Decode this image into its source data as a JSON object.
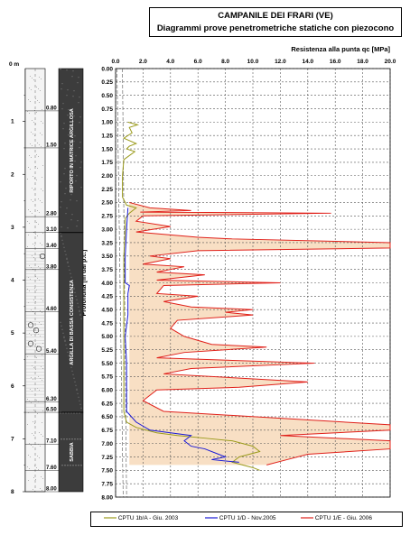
{
  "title_line1": "CAMPANILE DEI FRARI (VE)",
  "title_line2": "Diagrammi prove penetrometriche statiche con piezocono",
  "colors": {
    "cptu_1bA": "#9b9b1c",
    "cptu_1D": "#1a1ad6",
    "cptu_1E": "#e0201a",
    "fill": "#f8dfc4",
    "grid": "#555555"
  },
  "strat_column": {
    "depth_unit": "0 m",
    "depth_ticks": [
      "1",
      "2",
      "3",
      "4",
      "5",
      "6",
      "7",
      "8"
    ],
    "depth_values": [
      1,
      2,
      3,
      4,
      5,
      6,
      7,
      8
    ],
    "layer_boundary_labels": [
      "0.80",
      "1.50",
      "2.80",
      "3.10",
      "3.40",
      "3.80",
      "4.60",
      "5.40",
      "6.30",
      "6.50",
      "7.10",
      "7.60",
      "8.00"
    ],
    "layer_boundary_values": [
      0.8,
      1.5,
      2.8,
      3.1,
      3.4,
      3.8,
      4.6,
      5.4,
      6.3,
      6.5,
      7.1,
      7.6,
      8.0
    ],
    "units": [
      {
        "name": "RIPORTO IN MATRICE ARGILLOSA",
        "top": 0,
        "bottom": 3.1
      },
      {
        "name": "ARGILLA DI BASSA CONSISTENZA",
        "top": 3.1,
        "bottom": 6.5
      },
      {
        "name": "SABBIA",
        "top": 6.5,
        "bottom": 8.0
      }
    ]
  },
  "chart_data": {
    "type": "line",
    "title": "Resistenza alla punta qc [MPa]",
    "ylabel": "Profondità [m dal p.c.]",
    "xlim": [
      0,
      20
    ],
    "ylim": [
      0,
      8
    ],
    "x_ticks": [
      "0.0",
      "2.0",
      "4.0",
      "6.0",
      "8.0",
      "10.0",
      "12.0",
      "14.0",
      "16.0",
      "18.0",
      "20.0"
    ],
    "y_ticks": [
      "0.00",
      "0.25",
      "0.50",
      "0.75",
      "1.00",
      "1.25",
      "1.50",
      "1.75",
      "2.00",
      "2.25",
      "2.50",
      "2.75",
      "3.00",
      "3.25",
      "3.50",
      "3.75",
      "4.00",
      "4.25",
      "4.50",
      "4.75",
      "5.00",
      "5.25",
      "5.50",
      "5.75",
      "6.00",
      "6.25",
      "6.50",
      "6.75",
      "7.00",
      "7.25",
      "7.50",
      "7.75",
      "8.00"
    ],
    "grid": true,
    "series": [
      {
        "name": "CPTU 1b/A - Giu. 2003",
        "color": "#9b9b1c",
        "points": [
          [
            0.9,
            1.0
          ],
          [
            1.6,
            1.05
          ],
          [
            1.0,
            1.1
          ],
          [
            1.2,
            1.2
          ],
          [
            0.6,
            1.3
          ],
          [
            1.5,
            1.4
          ],
          [
            1.0,
            1.45
          ],
          [
            0.8,
            1.5
          ],
          [
            1.4,
            1.55
          ],
          [
            0.6,
            1.7
          ],
          [
            0.5,
            2.0
          ],
          [
            0.5,
            2.4
          ],
          [
            0.8,
            2.55
          ],
          [
            1.5,
            2.6
          ],
          [
            1.0,
            2.7
          ],
          [
            0.7,
            2.8
          ],
          [
            0.7,
            3.0
          ],
          [
            0.6,
            3.5
          ],
          [
            0.6,
            4.0
          ],
          [
            0.6,
            4.5
          ],
          [
            0.6,
            5.0
          ],
          [
            0.6,
            5.5
          ],
          [
            0.6,
            6.0
          ],
          [
            0.6,
            6.4
          ],
          [
            0.8,
            6.6
          ],
          [
            1.5,
            6.7
          ],
          [
            3.0,
            6.8
          ],
          [
            4.5,
            6.85
          ],
          [
            6.5,
            6.9
          ],
          [
            8.5,
            6.95
          ],
          [
            10.0,
            7.05
          ],
          [
            10.5,
            7.15
          ],
          [
            9.0,
            7.25
          ],
          [
            8.5,
            7.35
          ],
          [
            10.0,
            7.45
          ],
          [
            10.5,
            7.5
          ]
        ]
      },
      {
        "name": "CPTU 1/D - Nov.2005",
        "color": "#1a1ad6",
        "points": [
          [
            0.9,
            2.6
          ],
          [
            0.8,
            3.0
          ],
          [
            0.7,
            3.5
          ],
          [
            0.7,
            4.0
          ],
          [
            1.0,
            4.05
          ],
          [
            0.9,
            4.2
          ],
          [
            0.9,
            4.6
          ],
          [
            0.7,
            5.0
          ],
          [
            0.8,
            5.5
          ],
          [
            0.8,
            6.0
          ],
          [
            0.8,
            6.4
          ],
          [
            1.5,
            6.6
          ],
          [
            2.5,
            6.75
          ],
          [
            4.0,
            6.8
          ],
          [
            5.5,
            6.85
          ],
          [
            5.0,
            6.95
          ],
          [
            5.5,
            7.05
          ],
          [
            6.5,
            7.1
          ],
          [
            7.5,
            7.2
          ],
          [
            8.0,
            7.25
          ],
          [
            7.0,
            7.3
          ],
          [
            9.0,
            7.35
          ]
        ]
      },
      {
        "name": "CPTU 1/E - Giu. 2006",
        "color": "#e0201a",
        "points": [
          [
            1.0,
            2.5
          ],
          [
            2.5,
            2.6
          ],
          [
            5.5,
            2.65
          ],
          [
            1.8,
            2.68
          ],
          [
            15.7,
            2.7
          ],
          [
            2.0,
            2.75
          ],
          [
            1.5,
            2.85
          ],
          [
            4.0,
            2.95
          ],
          [
            1.5,
            3.05
          ],
          [
            6.0,
            3.15
          ],
          [
            8.5,
            3.18
          ],
          [
            20.0,
            3.25
          ],
          [
            20.0,
            3.35
          ],
          [
            6.0,
            3.4
          ],
          [
            2.5,
            3.5
          ],
          [
            4.0,
            3.55
          ],
          [
            2.0,
            3.65
          ],
          [
            5.0,
            3.7
          ],
          [
            3.0,
            3.8
          ],
          [
            6.5,
            3.85
          ],
          [
            3.0,
            3.95
          ],
          [
            12.0,
            4.0
          ],
          [
            3.5,
            4.05
          ],
          [
            3.0,
            4.2
          ],
          [
            6.0,
            4.25
          ],
          [
            3.5,
            4.35
          ],
          [
            5.5,
            4.45
          ],
          [
            10.0,
            4.5
          ],
          [
            8.0,
            4.55
          ],
          [
            10.0,
            4.6
          ],
          [
            4.5,
            4.7
          ],
          [
            4.0,
            4.85
          ],
          [
            5.0,
            5.0
          ],
          [
            7.0,
            5.15
          ],
          [
            11.0,
            5.2
          ],
          [
            5.0,
            5.3
          ],
          [
            3.0,
            5.4
          ],
          [
            14.5,
            5.5
          ],
          [
            5.5,
            5.6
          ],
          [
            3.5,
            5.7
          ],
          [
            14.0,
            5.85
          ],
          [
            9.0,
            5.95
          ],
          [
            3.0,
            6.0
          ],
          [
            2.0,
            6.2
          ],
          [
            3.5,
            6.4
          ],
          [
            20.0,
            6.65
          ],
          [
            20.0,
            6.75
          ],
          [
            12.0,
            6.85
          ],
          [
            20.0,
            6.95
          ],
          [
            20.0,
            7.1
          ],
          [
            14.0,
            7.2
          ],
          [
            12.5,
            7.3
          ],
          [
            11.0,
            7.4
          ]
        ]
      }
    ]
  }
}
